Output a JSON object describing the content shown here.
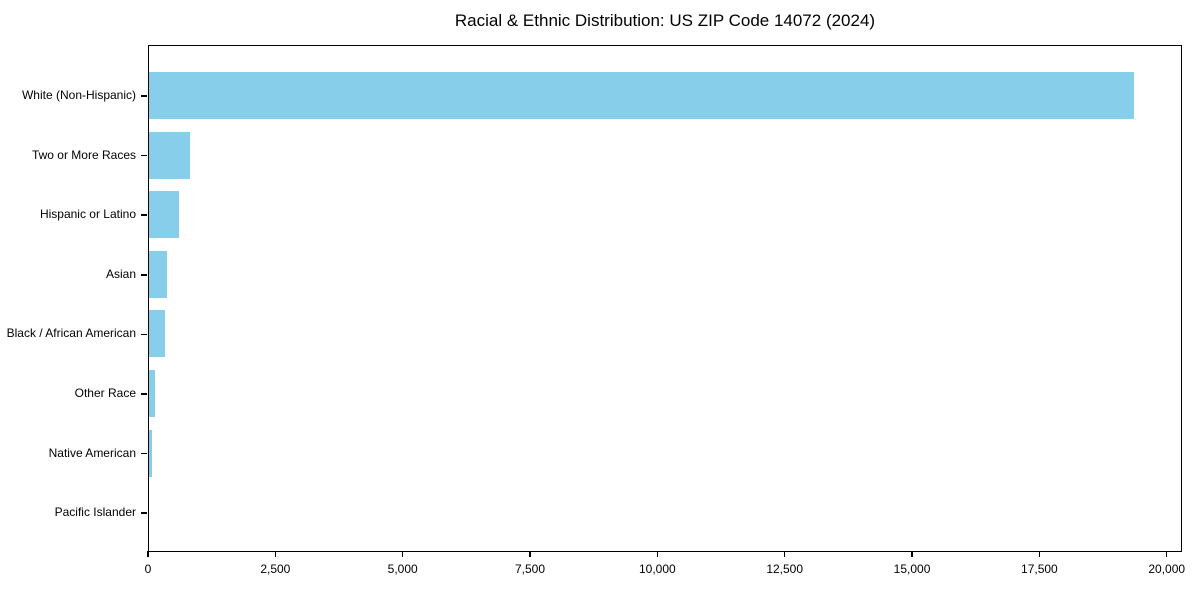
{
  "chart_data": {
    "type": "bar",
    "orientation": "horizontal",
    "title": "Racial & Ethnic Distribution: US ZIP Code 14072 (2024)",
    "xlabel": "",
    "ylabel": "",
    "categories": [
      "White (Non-Hispanic)",
      "Two or More Races",
      "Hispanic or Latino",
      "Asian",
      "Black / African American",
      "Other Race",
      "Native American",
      "Pacific Islander"
    ],
    "values": [
      19330,
      800,
      590,
      360,
      310,
      115,
      58,
      0
    ],
    "bar_color": "#87CEEB",
    "axis_color": "#000000",
    "xlim": [
      0,
      20300
    ],
    "x_ticks": [
      0,
      2500,
      5000,
      7500,
      10000,
      12500,
      15000,
      17500,
      20000
    ],
    "x_tick_labels": [
      "0",
      "2,500",
      "5,000",
      "7,500",
      "10,000",
      "12,500",
      "15,000",
      "17,500",
      "20,000"
    ],
    "grid": false,
    "legend": null
  }
}
